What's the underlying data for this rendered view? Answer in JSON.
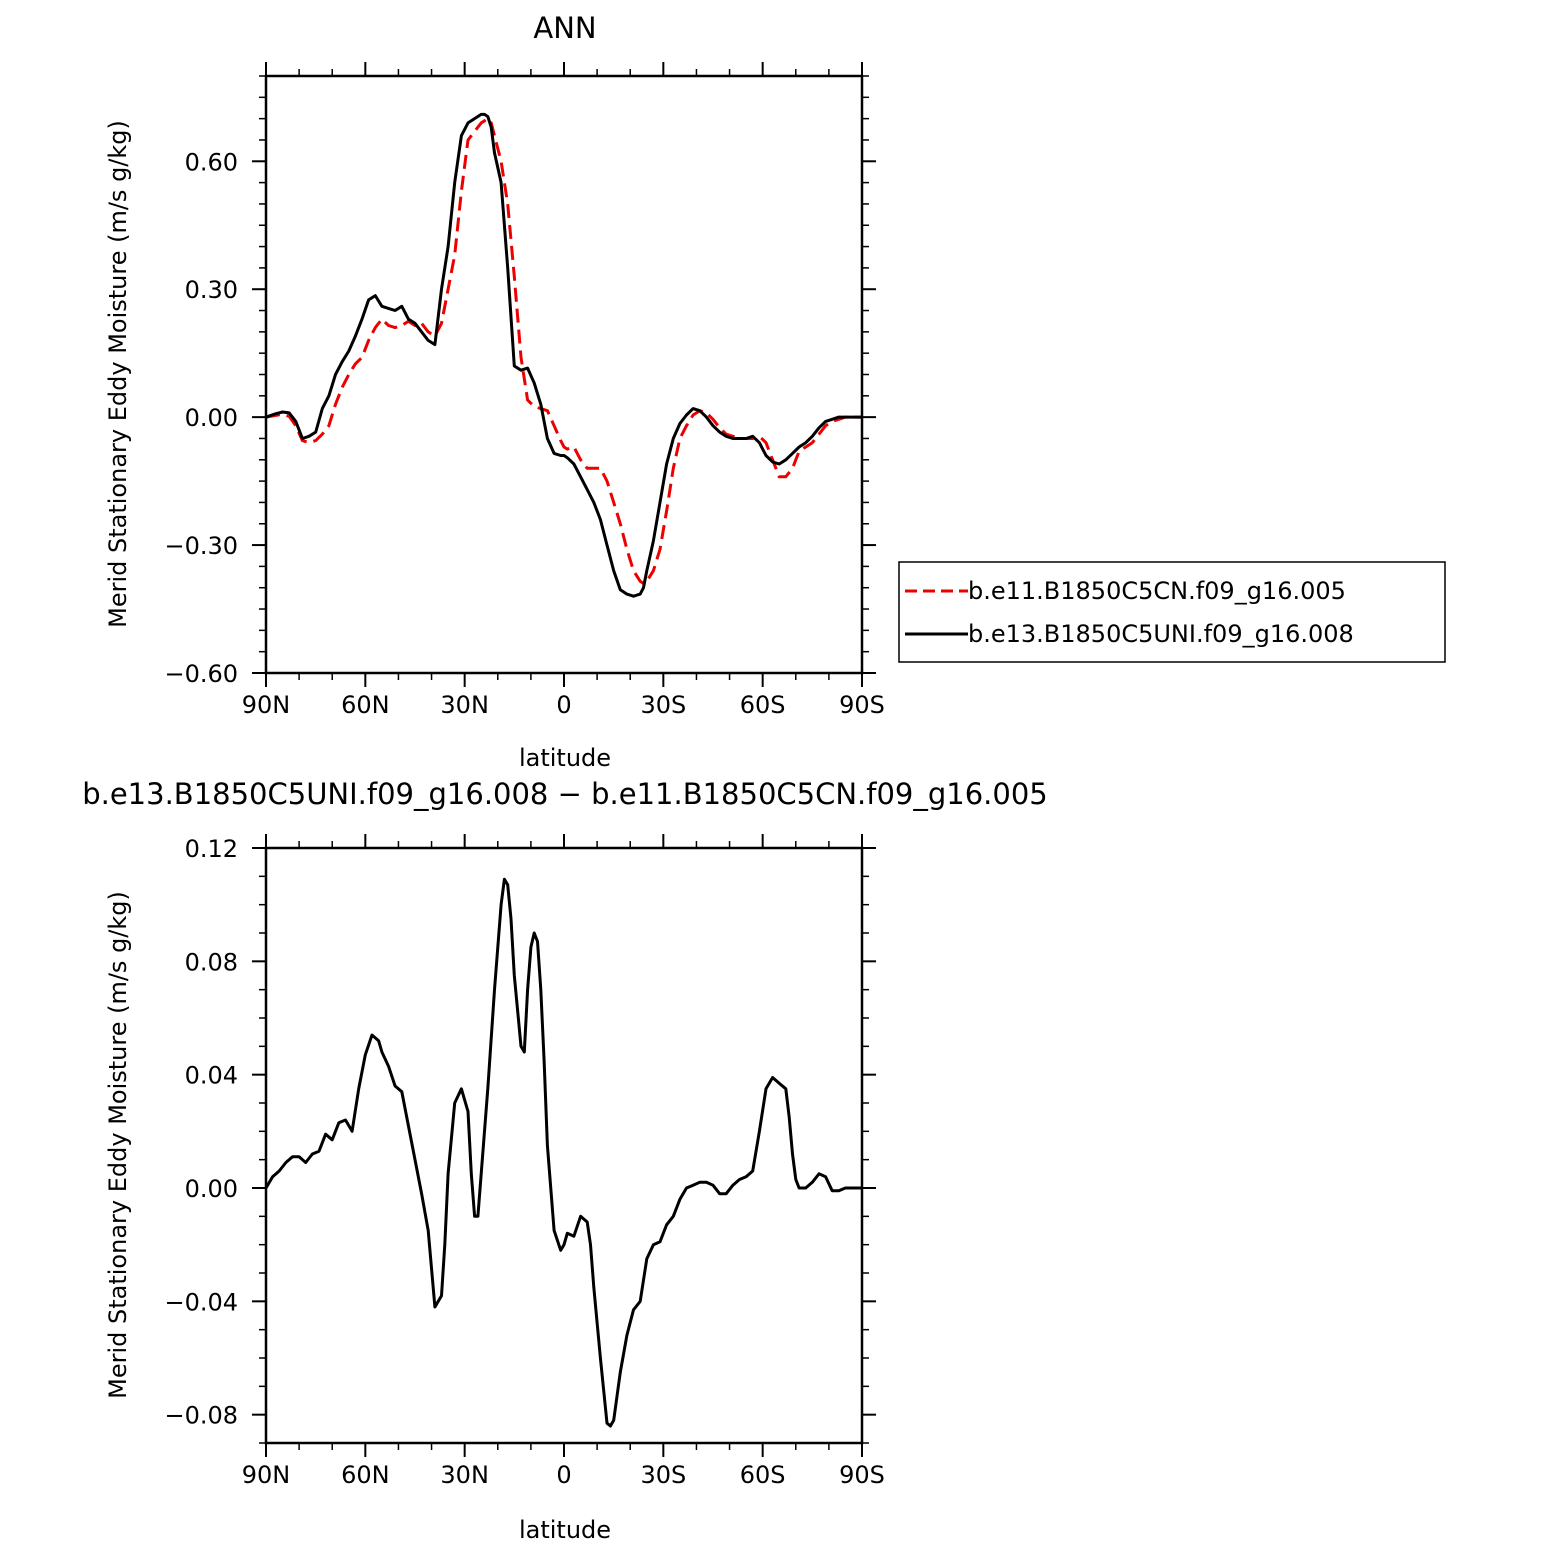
{
  "chart_data": [
    {
      "type": "line",
      "title": "ANN",
      "xlabel": "latitude",
      "ylabel": "Merid Stationary Eddy Moisture (m/s g/kg)",
      "xlim": [
        90,
        -90
      ],
      "ylim": [
        -0.6,
        0.8
      ],
      "x_ticks": [
        90,
        60,
        30,
        0,
        -30,
        -60,
        -90
      ],
      "x_tick_labels": [
        "90N",
        "60N",
        "30N",
        "0",
        "30S",
        "60S",
        "90S"
      ],
      "y_ticks": [
        -0.6,
        -0.3,
        0,
        0.3,
        0.6
      ],
      "y_tick_labels": [
        "−0.60",
        "−0.30",
        "0.00",
        "0.30",
        "0.60"
      ],
      "legend_position": "right",
      "series": [
        {
          "name": "b.e11.B1850C5CN.f09_g16.005",
          "color": "#ee0000",
          "style": "dashed",
          "x": [
            90,
            85,
            83,
            81,
            79,
            77,
            75,
            73,
            71,
            69,
            67,
            65,
            63,
            61,
            59,
            57,
            55,
            53,
            51,
            49,
            47,
            45,
            43,
            41,
            39,
            37,
            35,
            33,
            31,
            29,
            27,
            25,
            24,
            23,
            22,
            21,
            19,
            17,
            15,
            13,
            11,
            9,
            7,
            5,
            3,
            1,
            0,
            -1,
            -3,
            -5,
            -7,
            -9,
            -11,
            -13,
            -15,
            -17,
            -19,
            -21,
            -23,
            -24,
            -25,
            -27,
            -29,
            -31,
            -33,
            -35,
            -37,
            -39,
            -41,
            -43,
            -45,
            -47,
            -49,
            -51,
            -53,
            -55,
            -57,
            -59,
            -61,
            -63,
            -65,
            -67,
            -69,
            -71,
            -73,
            -75,
            -77,
            -79,
            -81,
            -83,
            -85,
            -87,
            -90
          ],
          "values": [
            0,
            0.007,
            0.002,
            -0.02,
            -0.055,
            -0.06,
            -0.055,
            -0.04,
            -0.02,
            0.03,
            0.07,
            0.1,
            0.125,
            0.14,
            0.18,
            0.21,
            0.23,
            0.215,
            0.21,
            0.215,
            0.225,
            0.215,
            0.22,
            0.2,
            0.19,
            0.22,
            0.3,
            0.38,
            0.53,
            0.65,
            0.67,
            0.69,
            0.695,
            0.7,
            0.69,
            0.66,
            0.6,
            0.5,
            0.33,
            0.14,
            0.04,
            0.025,
            0.02,
            0.015,
            -0.02,
            -0.055,
            -0.07,
            -0.075,
            -0.07,
            -0.1,
            -0.12,
            -0.12,
            -0.12,
            -0.15,
            -0.2,
            -0.25,
            -0.31,
            -0.36,
            -0.385,
            -0.39,
            -0.385,
            -0.36,
            -0.31,
            -0.22,
            -0.12,
            -0.05,
            -0.02,
            0.005,
            0.015,
            0.01,
            -0.005,
            -0.025,
            -0.04,
            -0.045,
            -0.05,
            -0.05,
            -0.05,
            -0.045,
            -0.06,
            -0.1,
            -0.14,
            -0.14,
            -0.12,
            -0.08,
            -0.07,
            -0.06,
            -0.04,
            -0.02,
            -0.01,
            -0.005,
            0,
            0,
            0
          ]
        },
        {
          "name": "b.e13.B1850C5UNI.f09_g16.008",
          "color": "#000000",
          "style": "solid",
          "x": [
            90,
            87,
            85,
            83,
            81,
            79,
            77,
            75,
            73,
            71,
            69,
            67,
            65,
            63,
            61,
            59,
            57,
            55,
            53,
            51,
            49,
            47,
            45,
            43,
            41,
            39,
            37,
            35,
            33,
            31,
            29,
            27,
            25,
            24,
            23,
            22,
            21,
            19,
            17,
            15,
            13,
            11,
            9,
            7,
            5,
            3,
            1,
            0,
            -1,
            -3,
            -5,
            -7,
            -9,
            -11,
            -13,
            -15,
            -17,
            -19,
            -21,
            -23,
            -24,
            -25,
            -27,
            -29,
            -31,
            -33,
            -35,
            -37,
            -39,
            -41,
            -43,
            -45,
            -47,
            -49,
            -51,
            -53,
            -55,
            -57,
            -59,
            -61,
            -63,
            -65,
            -67,
            -69,
            -71,
            -73,
            -75,
            -77,
            -79,
            -81,
            -83,
            -85,
            -87,
            -90
          ],
          "values": [
            0,
            0.008,
            0.012,
            0.01,
            -0.01,
            -0.05,
            -0.045,
            -0.035,
            0.02,
            0.05,
            0.1,
            0.13,
            0.155,
            0.19,
            0.23,
            0.275,
            0.285,
            0.26,
            0.255,
            0.25,
            0.26,
            0.23,
            0.22,
            0.2,
            0.18,
            0.17,
            0.3,
            0.4,
            0.55,
            0.66,
            0.69,
            0.7,
            0.71,
            0.71,
            0.705,
            0.68,
            0.62,
            0.55,
            0.35,
            0.12,
            0.11,
            0.115,
            0.08,
            0.03,
            -0.05,
            -0.085,
            -0.09,
            -0.09,
            -0.095,
            -0.11,
            -0.14,
            -0.17,
            -0.2,
            -0.24,
            -0.3,
            -0.36,
            -0.405,
            -0.415,
            -0.42,
            -0.415,
            -0.4,
            -0.36,
            -0.29,
            -0.2,
            -0.11,
            -0.05,
            -0.015,
            0.005,
            0.02,
            0.015,
            0,
            -0.02,
            -0.035,
            -0.045,
            -0.05,
            -0.05,
            -0.05,
            -0.045,
            -0.06,
            -0.09,
            -0.105,
            -0.11,
            -0.1,
            -0.085,
            -0.07,
            -0.06,
            -0.045,
            -0.025,
            -0.01,
            -0.005,
            0,
            0,
            0,
            0
          ]
        }
      ]
    },
    {
      "type": "line",
      "title": "b.e13.B1850C5UNI.f09_g16.008 − b.e11.B1850C5CN.f09_g16.005",
      "xlabel": "latitude",
      "ylabel": "Merid Stationary Eddy Moisture (m/s g/kg)",
      "xlim": [
        90,
        -90
      ],
      "ylim": [
        -0.09,
        0.12
      ],
      "x_ticks": [
        90,
        60,
        30,
        0,
        -30,
        -60,
        -90
      ],
      "x_tick_labels": [
        "90N",
        "60N",
        "30N",
        "0",
        "30S",
        "60S",
        "90S"
      ],
      "y_ticks": [
        -0.08,
        -0.04,
        0,
        0.04,
        0.08,
        0.12
      ],
      "y_tick_labels": [
        "−0.08",
        "−0.04",
        "0.00",
        "0.04",
        "0.08",
        "0.12"
      ],
      "series": [
        {
          "color": "#000000",
          "style": "solid",
          "x": [
            90,
            88,
            86,
            84,
            82,
            80,
            78,
            76,
            74,
            72,
            70,
            68,
            66,
            64,
            62,
            60,
            58,
            56,
            55,
            53,
            51,
            49,
            47,
            45,
            43,
            41,
            39,
            37,
            36,
            35,
            33,
            31,
            29,
            28,
            27,
            26,
            25,
            23,
            21,
            19,
            18,
            17,
            16,
            15,
            13,
            12,
            11,
            10,
            9,
            8,
            7,
            6,
            5,
            3,
            1,
            0,
            -1,
            -3,
            -5,
            -7,
            -8,
            -9,
            -11,
            -13,
            -14,
            -15,
            -17,
            -19,
            -21,
            -23,
            -25,
            -27,
            -29,
            -31,
            -33,
            -35,
            -37,
            -39,
            -41,
            -43,
            -45,
            -47,
            -49,
            -51,
            -53,
            -55,
            -57,
            -59,
            -61,
            -63,
            -65,
            -67,
            -68,
            -69,
            -70,
            -71,
            -73,
            -75,
            -77,
            -79,
            -81,
            -83,
            -85,
            -87,
            -89,
            -90
          ],
          "values": [
            0,
            0.004,
            0.006,
            0.009,
            0.011,
            0.011,
            0.009,
            0.012,
            0.013,
            0.019,
            0.017,
            0.023,
            0.024,
            0.02,
            0.035,
            0.047,
            0.054,
            0.052,
            0.048,
            0.043,
            0.036,
            0.034,
            0.022,
            0.01,
            -0.002,
            -0.015,
            -0.042,
            -0.038,
            -0.02,
            0.005,
            0.03,
            0.035,
            0.027,
            0.005,
            -0.01,
            -0.01,
            0.005,
            0.035,
            0.07,
            0.1,
            0.109,
            0.107,
            0.095,
            0.075,
            0.05,
            0.048,
            0.07,
            0.085,
            0.09,
            0.087,
            0.07,
            0.045,
            0.015,
            -0.015,
            -0.022,
            -0.02,
            -0.016,
            -0.017,
            -0.01,
            -0.012,
            -0.02,
            -0.035,
            -0.06,
            -0.083,
            -0.084,
            -0.082,
            -0.065,
            -0.052,
            -0.043,
            -0.04,
            -0.025,
            -0.02,
            -0.019,
            -0.013,
            -0.01,
            -0.004,
            0,
            0.001,
            0.002,
            0.002,
            0.001,
            -0.002,
            -0.002,
            0.001,
            0.003,
            0.004,
            0.006,
            0.02,
            0.035,
            0.039,
            0.037,
            0.035,
            0.025,
            0.012,
            0.003,
            0,
            0,
            0.002,
            0.005,
            0.004,
            -0.001,
            -0.001,
            0,
            0,
            0,
            0
          ]
        }
      ]
    }
  ]
}
